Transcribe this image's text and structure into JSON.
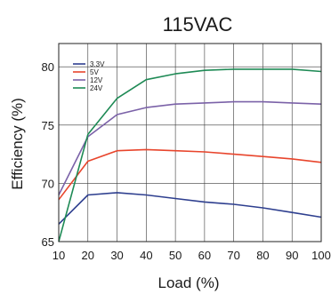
{
  "chart_data": {
    "type": "line",
    "title": "115VAC",
    "xlabel": "Load (%)",
    "ylabel": "Efficiency (%)",
    "x": [
      10,
      20,
      30,
      40,
      50,
      60,
      70,
      80,
      90,
      100
    ],
    "xlim": [
      10,
      100
    ],
    "ylim": [
      65,
      82
    ],
    "xticks": [
      10,
      20,
      30,
      40,
      50,
      60,
      70,
      80,
      90,
      100
    ],
    "yticks": [
      65,
      70,
      75,
      80
    ],
    "grid": true,
    "legend_position": "top-left",
    "series": [
      {
        "name": "3.3V",
        "color": "#2e3f8f",
        "values": [
          66.5,
          69.0,
          69.2,
          69.0,
          68.7,
          68.4,
          68.2,
          67.9,
          67.5,
          67.1
        ]
      },
      {
        "name": "5V",
        "color": "#e8452c",
        "values": [
          68.6,
          71.9,
          72.8,
          72.9,
          72.8,
          72.7,
          72.5,
          72.3,
          72.1,
          71.8
        ]
      },
      {
        "name": "12V",
        "color": "#7b62a8",
        "values": [
          69.0,
          74.0,
          75.9,
          76.5,
          76.8,
          76.9,
          77.0,
          77.0,
          76.9,
          76.8
        ]
      },
      {
        "name": "24V",
        "color": "#1e8a55",
        "values": [
          65.0,
          74.2,
          77.3,
          78.9,
          79.4,
          79.7,
          79.8,
          79.8,
          79.8,
          79.6
        ]
      }
    ]
  }
}
